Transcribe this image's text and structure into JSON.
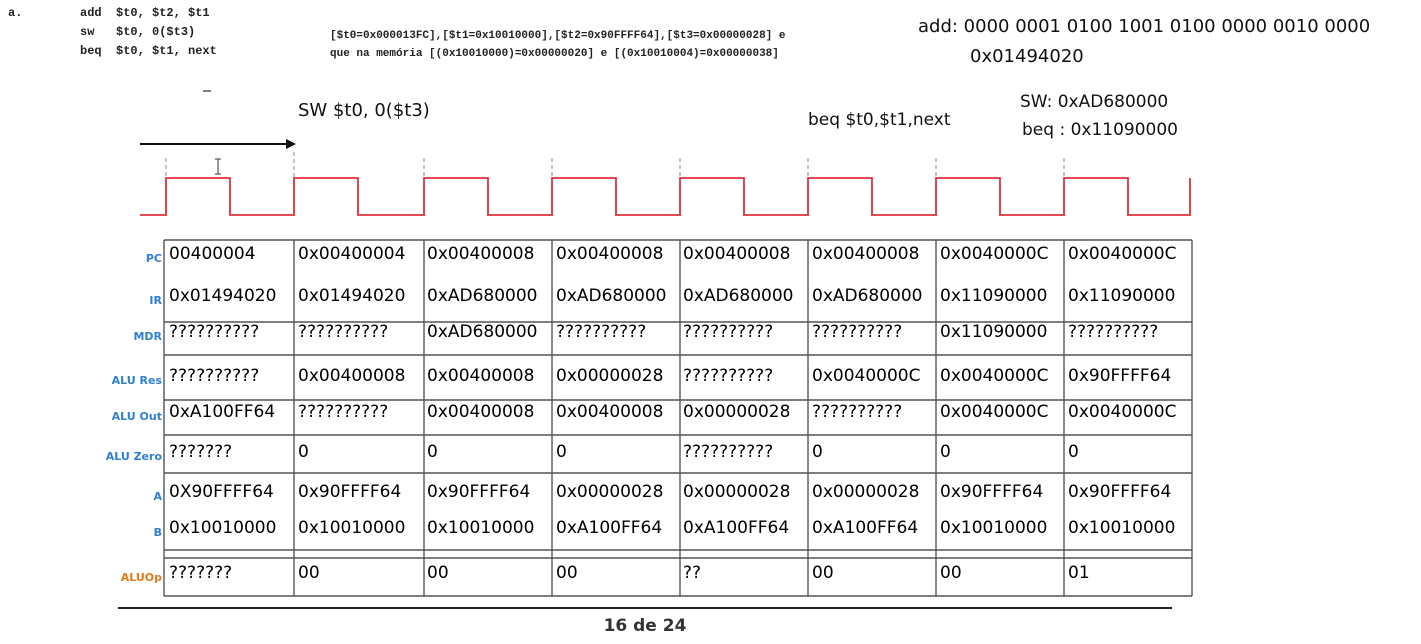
{
  "header": {
    "item_letter": "a.",
    "code_lines": [
      "add  $t0, $t2, $t1",
      "sw   $t0, 0($t3)",
      "beq  $t0, $t1, next"
    ],
    "register_note_line1": "[$t0=0x000013FC],[$t1=0x10010000],[$t2=0x90FFFF64],[$t3=0x00000028] e",
    "register_note_line2": "que na memória [(0x10010000)=0x00000020] e [(0x10010004)=0x00000038]"
  },
  "annotations": {
    "add_binary": "add: 0000 0001 0100 1001 0100 0000 0010 0000",
    "add_hex": "0x01494020",
    "sw_instr": "SW $t0, 0($t3)",
    "beq_instr": "beq $t0,$t1,next",
    "sw_code": "SW:   0xAD680000",
    "beq_code": "beq : 0x11090000"
  },
  "table": {
    "rows": [
      {
        "label": "PC",
        "values": [
          "00400004",
          "0x00400004",
          "0x00400008",
          "0x00400008",
          "0x00400008",
          "0x00400008",
          "0x0040000C",
          "0x0040000C"
        ]
      },
      {
        "label": "IR",
        "values": [
          "0x01494020",
          "0x01494020",
          "0xAD680000",
          "0xAD680000",
          "0xAD680000",
          "0xAD680000",
          "0x11090000",
          "0x11090000"
        ]
      },
      {
        "label": "MDR",
        "values": [
          "??????????",
          "??????????",
          "0xAD680000",
          "??????????",
          "??????????",
          "??????????",
          "0x11090000",
          "??????????"
        ]
      },
      {
        "label": "ALU Res",
        "values": [
          "??????????",
          "0x00400008",
          "0x00400008",
          "0x00000028",
          "??????????",
          "0x0040000C",
          "0x0040000C",
          "0x90FFFF64"
        ]
      },
      {
        "label": "ALU Out",
        "values": [
          "0xA100FF64",
          "??????????",
          "0x00400008",
          "0x00400008",
          "0x00000028",
          "??????????",
          "0x0040000C",
          "0x0040000C"
        ]
      },
      {
        "label": "ALU Zero",
        "values": [
          "???????",
          "0",
          "0",
          "0",
          "??????????",
          "0",
          "0",
          "0"
        ]
      },
      {
        "label": "A",
        "values": [
          "0X90FFFF64",
          "0x90FFFF64",
          "0x90FFFF64",
          "0x00000028",
          "0x00000028",
          "0x00000028",
          "0x90FFFF64",
          "0x90FFFF64"
        ]
      },
      {
        "label": "B",
        "values": [
          "0x10010000",
          "0x10010000",
          "0x10010000",
          "0xA100FF64",
          "0xA100FF64",
          "0xA100FF64",
          "0x10010000",
          "0x10010000"
        ]
      },
      {
        "label": "ALUOp",
        "values": [
          "???????",
          "00",
          "00",
          "00",
          "??",
          "00",
          "00",
          "01"
        ]
      }
    ]
  },
  "footer": {
    "page": "16 de 24"
  },
  "colors": {
    "clock": "#e0303a",
    "label_blue": "#2f7fd0",
    "label_orange": "#e07a1a"
  }
}
